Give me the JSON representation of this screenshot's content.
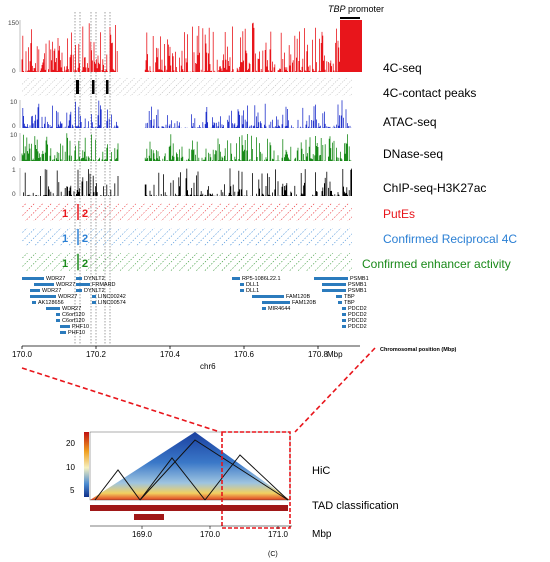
{
  "promoter": {
    "gene": "TBP",
    "label": "promoter"
  },
  "tracks": {
    "fourc": {
      "name": "4C-seq",
      "ymax": "150",
      "ymin": "0",
      "color": "#e8151b"
    },
    "peaks": {
      "name": "4C-contact peaks"
    },
    "atac": {
      "name": "ATAC-seq",
      "ymax": "10",
      "ymin": "0",
      "color": "#2233cc"
    },
    "dnase": {
      "name": "DNase-seq",
      "ymax": "10",
      "ymin": "0",
      "color": "#1a8a1a"
    },
    "chip": {
      "name": "ChIP-seq-H3K27ac",
      "ymax": "1",
      "ymin": "0",
      "color": "#000000"
    },
    "putes": {
      "name": "PutEs",
      "n1": "1",
      "n2": "2",
      "color": "#e8151b"
    },
    "recip": {
      "name": "Confirmed Reciprocal 4C",
      "n1": "1",
      "n2": "2",
      "color": "#2a7fd4"
    },
    "enh": {
      "name": "Confirmed enhancer activity",
      "n1": "1",
      "n2": "2",
      "color": "#1a8a1a"
    }
  },
  "genes": {
    "left": [
      "WDR27",
      "WDR27",
      "WDR27",
      "WDR27",
      "AK128656",
      "WDR27",
      "C6orf120",
      "C6orf120",
      "PHF10",
      "PHF10"
    ],
    "mid": [
      "DYNLT2",
      "FRMARD",
      "DYNLT2",
      "LINC00242",
      "LINC00574"
    ],
    "center_left": [
      "RP5-1086L22.1",
      "DLL1",
      "DLL1"
    ],
    "center_right": [
      "FAM120B",
      "FAM120B",
      "MIR4644"
    ],
    "right": [
      "PSMB1",
      "PSMB1",
      "PSMB1",
      "TBP",
      "TBP",
      "PDCD2",
      "PDCD2",
      "PDCD2",
      "PDCD2"
    ]
  },
  "axis": {
    "ticks": [
      "170.0",
      "170.2",
      "170.4",
      "170.6",
      "170.8"
    ],
    "unit": "Mbp",
    "chrom": "chr6",
    "position_label": "Chromosomal position (Mbp)"
  },
  "hic": {
    "yticks": [
      "20",
      "10",
      "5"
    ],
    "label": "HiC",
    "tad_label": "TAD classification",
    "xticks": [
      "169.0",
      "170.0",
      "171.0"
    ],
    "unit": "Mbp"
  },
  "panel_label": "(C)",
  "colors": {
    "red": "#e8151b",
    "blue": "#2a7fd4",
    "green": "#1a8a1a",
    "tad": "#a01818",
    "gene": "#2b7bbd"
  }
}
